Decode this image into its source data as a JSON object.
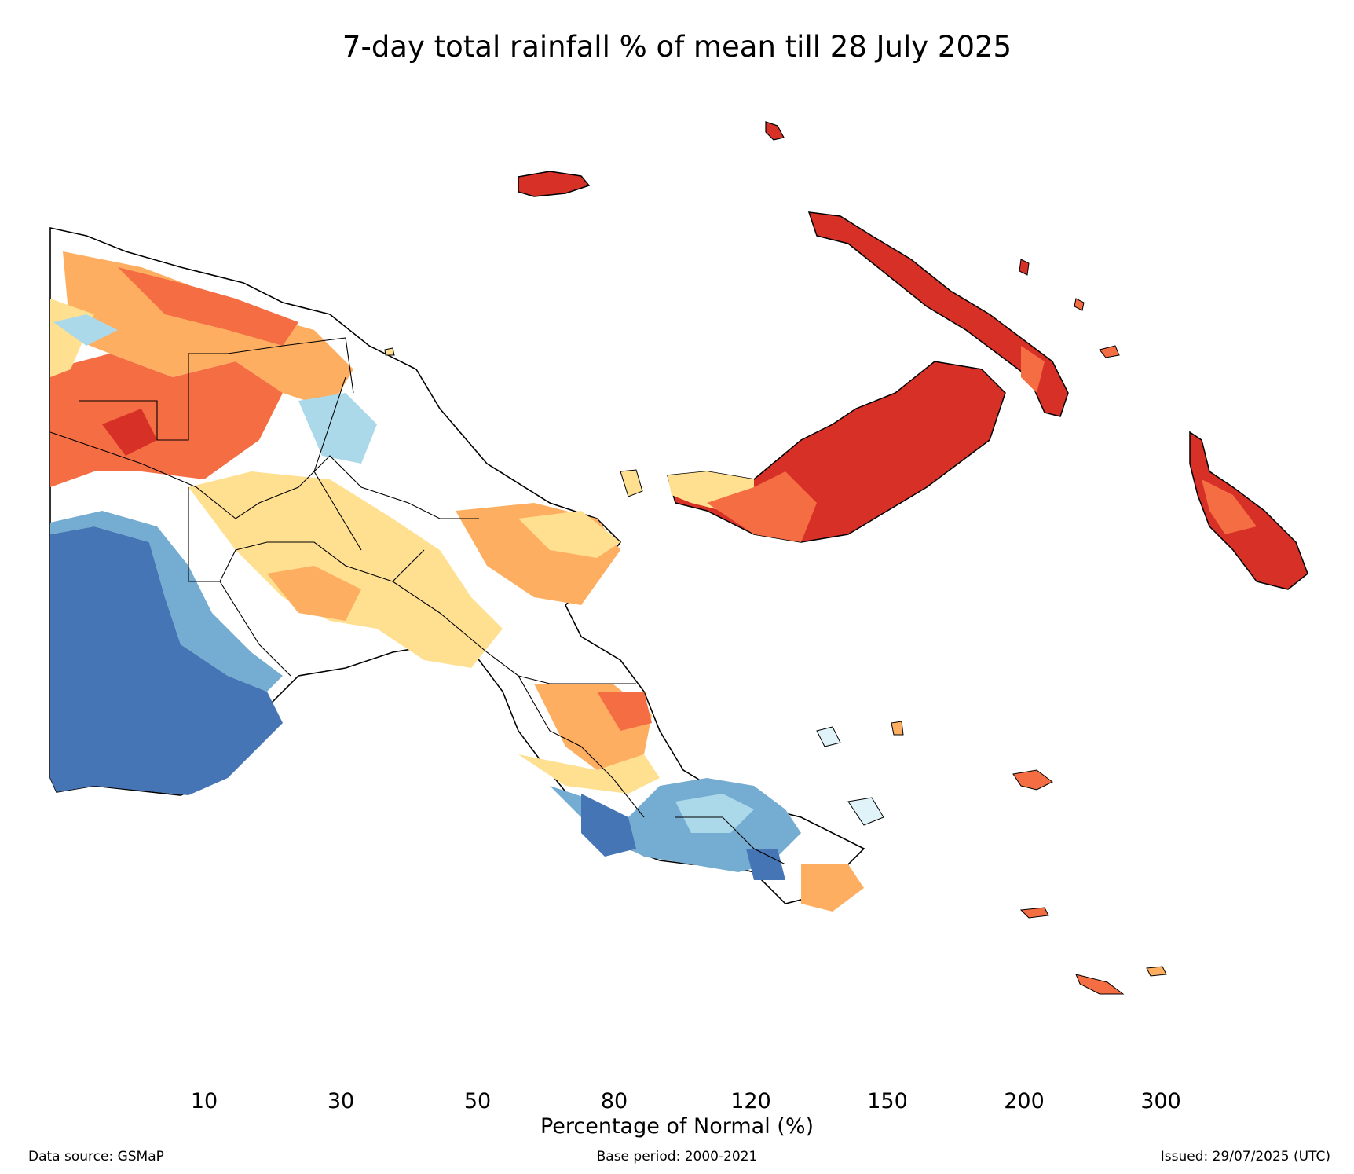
{
  "title": "7-day total rainfall % of mean till 28 July 2025",
  "colors": {
    "lt10": "#d73027",
    "c10_30": "#f46d43",
    "c30_50": "#fdae61",
    "c50_80": "#fee090",
    "c80_120": "#ffffff",
    "c120_150": "#e0f3f8",
    "c150_200": "#abd9e9",
    "c200_300": "#74add1",
    "gt300": "#4575b4"
  },
  "legend": {
    "title": "Percentage of Normal (%)",
    "ticks": [
      "10",
      "30",
      "50",
      "80",
      "120",
      "150",
      "200",
      "300"
    ]
  },
  "footer": {
    "left": "Data source: GSMaP",
    "center": "Base period: 2000-2021",
    "right": "Issued: 29/07/2025 (UTC)"
  }
}
